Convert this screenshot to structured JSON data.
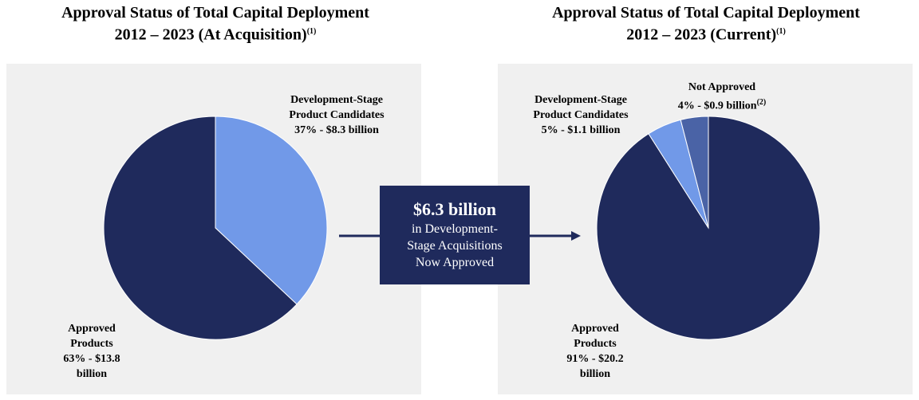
{
  "chart_data": [
    {
      "type": "pie",
      "title": "Approval Status of Total Capital Deployment",
      "subtitle": "2012 – 2023 (At Acquisition)",
      "title_note": "(1)",
      "categories": [
        "Development-Stage Product Candidates",
        "Approved Products"
      ],
      "values": [
        37,
        63
      ],
      "value_labels": [
        "37% - $8.3 billion",
        "63% - $13.8 billion"
      ],
      "value_label_notes": [
        null,
        null
      ],
      "colors": [
        "#7199e8",
        "#1f2a5c"
      ]
    },
    {
      "type": "pie",
      "title": "Approval Status of Total Capital Deployment",
      "subtitle": "2012 – 2023 (Current)",
      "title_note": "(1)",
      "categories": [
        "Approved Products",
        "Development-Stage Product Candidates",
        "Not Approved"
      ],
      "values": [
        91,
        5,
        4
      ],
      "value_labels": [
        "91% - $20.2 billion",
        "5% - $1.1 billion",
        "4% - $0.9 billion"
      ],
      "value_label_notes": [
        null,
        null,
        "(2)"
      ],
      "colors": [
        "#1f2a5c",
        "#7199e8",
        "#4a63a6"
      ]
    }
  ],
  "callout": {
    "headline": "$6.3 billion",
    "lines": [
      "in Development-",
      "Stage Acquisitions",
      "Now Approved"
    ]
  }
}
